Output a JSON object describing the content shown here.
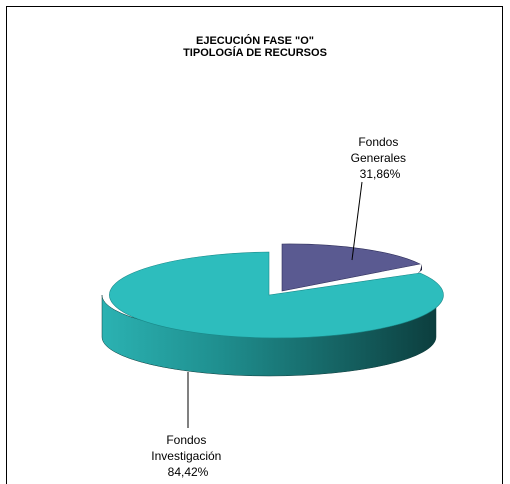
{
  "chart_data": {
    "type": "pie",
    "title": "EJECUCIÓN FASE \"O\"",
    "subtitle": "TIPOLOGÍA DE RECURSOS",
    "slices": [
      {
        "label_lines": [
          "Fondos",
          "Generales"
        ],
        "value_label": "31,86%",
        "value": 31.86,
        "color": "#5a5a91"
      },
      {
        "label_lines": [
          "Fondos",
          "Investigación"
        ],
        "value_label": "84,42%",
        "value": 84.42,
        "color": "#2dbdbd"
      }
    ]
  }
}
